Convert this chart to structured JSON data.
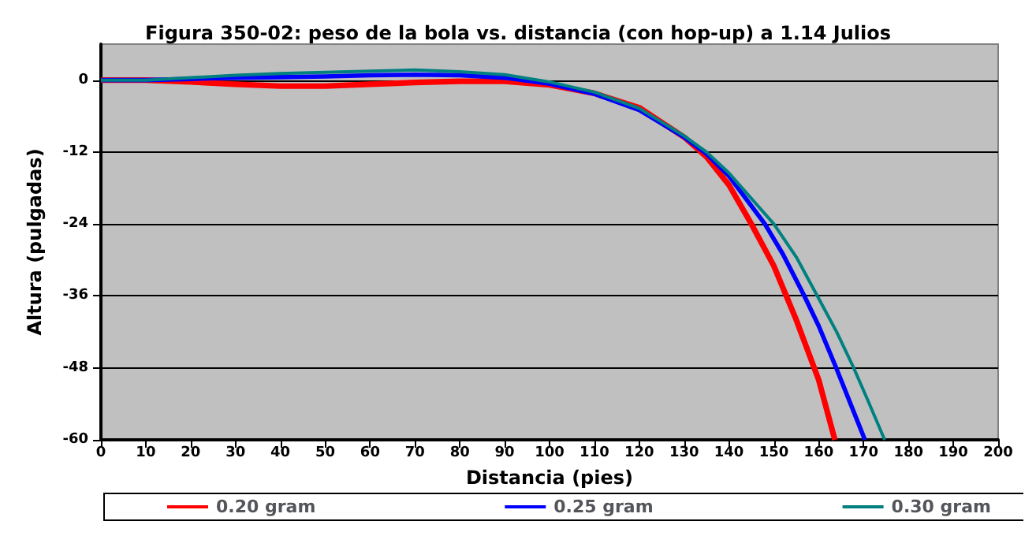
{
  "chart_data": {
    "type": "line",
    "title": "Figura 350-02: peso de la bola vs. distancia (con hop-up) a 1.14 Julios",
    "xlabel": "Distancia (pies)",
    "ylabel": "Altura (pulgadas)",
    "xlim": [
      0,
      200
    ],
    "xticks": [
      0,
      10,
      20,
      30,
      40,
      50,
      60,
      70,
      80,
      90,
      100,
      110,
      120,
      130,
      140,
      150,
      160,
      170,
      180,
      190,
      200
    ],
    "ylim": [
      -60,
      6
    ],
    "yticks": [
      0,
      -12,
      -24,
      -36,
      -48,
      -60
    ],
    "grid": "y",
    "legend": "bottom",
    "marker": "none",
    "line_style": "solid",
    "series": [
      {
        "name": "0.20 gram",
        "color": "#ff0000",
        "x": [
          0,
          10,
          20,
          30,
          40,
          50,
          60,
          70,
          80,
          90,
          100,
          110,
          120,
          130,
          135,
          140,
          145,
          150,
          155,
          160,
          163.6
        ],
        "values": [
          0,
          0,
          -0.3,
          -0.7,
          -1.0,
          -1.0,
          -0.7,
          -0.4,
          -0.2,
          -0.2,
          -0.8,
          -2.2,
          -4.6,
          -9.5,
          -12.8,
          -17.5,
          -24,
          -31,
          -40,
          -50,
          -60
        ]
      },
      {
        "name": "0.25 gram",
        "color": "#0000ff",
        "x": [
          0,
          10,
          20,
          30,
          40,
          50,
          60,
          70,
          80,
          90,
          100,
          110,
          120,
          130,
          135,
          140,
          148,
          152,
          156.8,
          160,
          163.9,
          170.3
        ],
        "values": [
          0,
          0,
          0.2,
          0.4,
          0.5,
          0.6,
          0.8,
          0.9,
          0.8,
          0.4,
          -0.6,
          -2.3,
          -5,
          -9.5,
          -12.3,
          -16,
          -24,
          -29,
          -36,
          -41,
          -48,
          -60
        ]
      },
      {
        "name": "0.30 gram",
        "color": "#008080",
        "x": [
          0,
          10,
          20,
          30,
          40,
          50,
          60,
          70,
          80,
          90,
          100,
          110,
          120,
          130,
          135,
          140,
          150,
          155,
          159.7,
          164,
          167.8,
          171,
          174.7
        ],
        "values": [
          0,
          0,
          0.4,
          0.8,
          1.1,
          1.3,
          1.5,
          1.7,
          1.4,
          0.9,
          -0.3,
          -2.0,
          -4.7,
          -9.3,
          -12,
          -15.5,
          -24,
          -29.5,
          -36,
          -42,
          -48,
          -53.5,
          -60
        ]
      }
    ]
  }
}
